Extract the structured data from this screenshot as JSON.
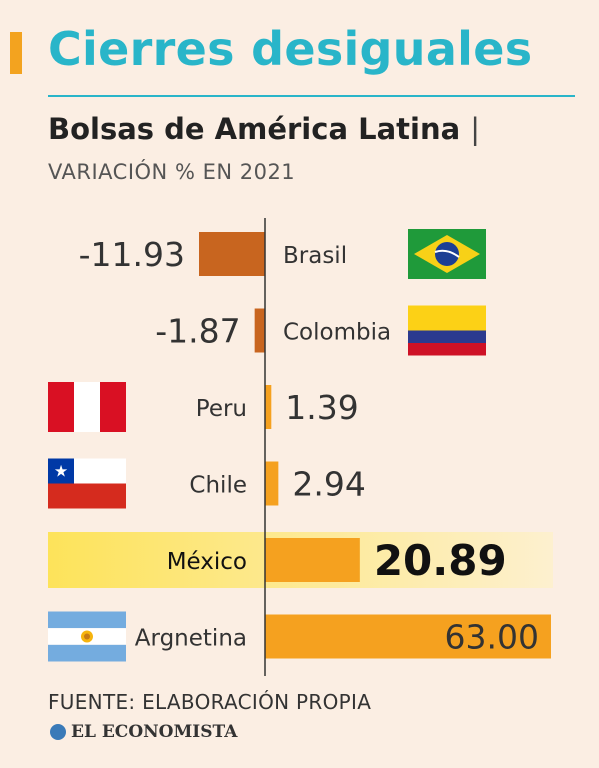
{
  "header": {
    "title": "Cierres desiguales",
    "subtitle": "Bolsas de América Latina",
    "subtitle_sep": "|",
    "unit": "VARIACIÓN % EN 2021"
  },
  "footer": {
    "source": "FUENTE: ELABORACIÓN PROPIA",
    "brand": "EL ECONOMISTA"
  },
  "colors": {
    "negative_bar": "#c8651f",
    "positive_bar": "#f5a11f",
    "highlight_band": "#fbdc7a",
    "axis": "#333333",
    "title": "#29b5c9"
  },
  "chart_data": {
    "type": "bar",
    "orientation": "horizontal",
    "categories": [
      "Brasil",
      "Colombia",
      "Peru",
      "Chile",
      "México",
      "Argnetina"
    ],
    "values": [
      -11.93,
      -1.87,
      1.39,
      2.94,
      20.89,
      63.0
    ],
    "value_labels": [
      "-11.93",
      "-1.87",
      "1.39",
      "2.94",
      "20.89",
      "63.00"
    ],
    "highlight": "México",
    "flags": [
      "brazil-flag",
      "colombia-flag",
      "peru-flag",
      "chile-flag",
      "",
      "argentina-flag"
    ],
    "title": "Cierres desiguales",
    "subtitle": "Bolsas de América Latina",
    "unit_label": "VARIACIÓN % EN 2021",
    "xlabel": "",
    "ylabel": "",
    "grid": false,
    "legend": "none"
  }
}
